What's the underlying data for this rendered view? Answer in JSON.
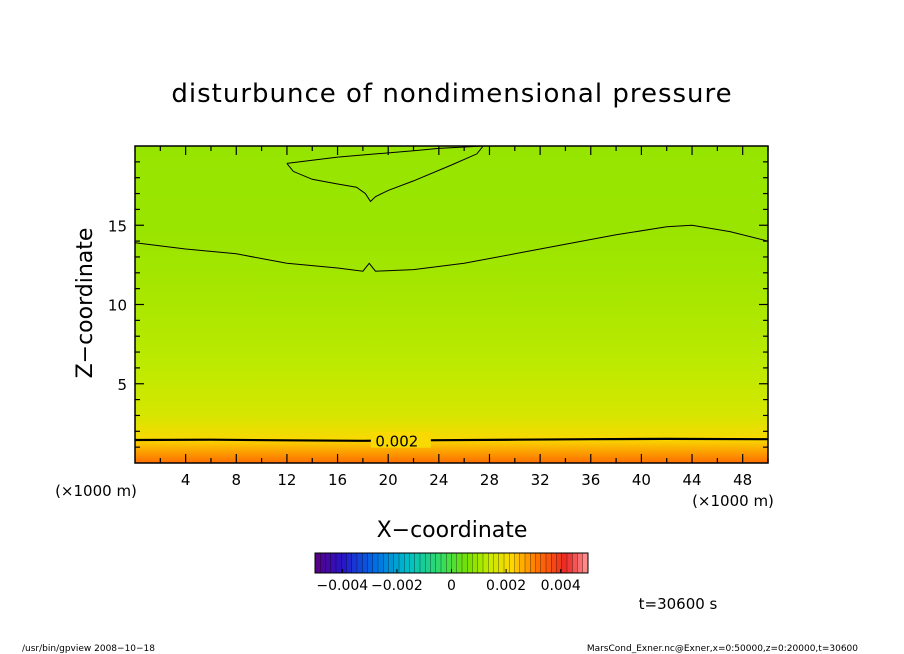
{
  "chart_data": {
    "type": "heatmap",
    "title": "disturbunce of nondimensional pressure",
    "xlabel": "X−coordinate",
    "ylabel": "Z−coordinate",
    "x_unit": "(×1000 m)",
    "y_unit": "(×1000 m)",
    "xlim": [
      0,
      50
    ],
    "ylim": [
      0,
      20
    ],
    "x_ticks": [
      "4",
      "8",
      "12",
      "16",
      "20",
      "24",
      "28",
      "32",
      "36",
      "40",
      "44",
      "48"
    ],
    "y_ticks": [
      "5",
      "10",
      "15"
    ],
    "colorbar": {
      "range": [
        -0.005,
        0.005
      ],
      "tick_labels": [
        "−0.004",
        "−0.002",
        "0",
        "0.002",
        "0.004"
      ]
    },
    "contour_label": "0.002",
    "time_label": "t=30600 s",
    "field_profile": [
      {
        "z": 0.0,
        "value": 0.0032
      },
      {
        "z": 1.5,
        "value": 0.0021
      },
      {
        "z": 3.0,
        "value": 0.0016
      },
      {
        "z": 6.0,
        "value": 0.0013
      },
      {
        "z": 10.0,
        "value": 0.0011
      },
      {
        "z": 14.0,
        "value": 0.00095
      },
      {
        "z": 20.0,
        "value": 0.0009
      }
    ],
    "contours": [
      {
        "level": "0.002",
        "labeled": true,
        "points": [
          [
            0,
            1.45
          ],
          [
            6,
            1.47
          ],
          [
            12,
            1.43
          ],
          [
            18,
            1.4
          ],
          [
            24,
            1.44
          ],
          [
            30,
            1.47
          ],
          [
            36,
            1.5
          ],
          [
            42,
            1.52
          ],
          [
            50,
            1.5
          ]
        ]
      },
      {
        "level": "upper",
        "labeled": false,
        "points": [
          [
            0,
            13.9
          ],
          [
            4,
            13.5
          ],
          [
            8,
            13.2
          ],
          [
            12,
            12.6
          ],
          [
            16,
            12.3
          ],
          [
            18,
            12.1
          ],
          [
            18.5,
            12.6
          ],
          [
            19,
            12.1
          ],
          [
            22,
            12.2
          ],
          [
            26,
            12.6
          ],
          [
            30,
            13.2
          ],
          [
            34,
            13.8
          ],
          [
            38,
            14.4
          ],
          [
            42,
            14.9
          ],
          [
            44,
            15.0
          ],
          [
            47,
            14.6
          ],
          [
            50,
            14.0
          ]
        ]
      },
      {
        "level": "top",
        "labeled": false,
        "points": [
          [
            12,
            18.9
          ],
          [
            14,
            19.1
          ],
          [
            16,
            19.3
          ],
          [
            19,
            19.5
          ],
          [
            22,
            19.7
          ],
          [
            24,
            19.85
          ],
          [
            27.5,
            20.0
          ],
          [
            27,
            19.5
          ],
          [
            25,
            18.8
          ],
          [
            22,
            17.8
          ],
          [
            20,
            17.2
          ],
          [
            19,
            16.8
          ],
          [
            18.6,
            16.5
          ],
          [
            18.2,
            17.0
          ],
          [
            17.5,
            17.4
          ],
          [
            16,
            17.6
          ],
          [
            14,
            17.9
          ],
          [
            12.5,
            18.4
          ],
          [
            12,
            18.9
          ]
        ]
      }
    ]
  },
  "footer": {
    "left": "/usr/bin/gpview   2008−10−18",
    "right": "MarsCond_Exner.nc@Exner,x=0:50000,z=0:20000,t=30600"
  },
  "colors": {
    "frame": "#000000",
    "contour": "#000000"
  }
}
